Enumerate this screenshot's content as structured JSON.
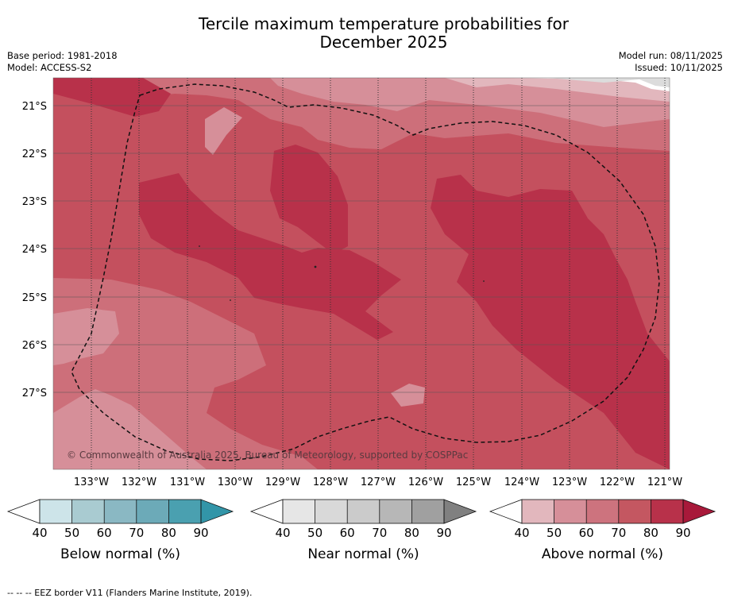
{
  "title_line1": "Tercile maximum temperature probabilities for",
  "title_line2": "December 2025",
  "base_period": "Base period: 1981-2018",
  "model": "Model: ACCESS-S2",
  "model_run": "Model run: 08/11/2025",
  "issued": "Issued: 10/11/2025",
  "copyright": "© Commonwealth of Australia 2025, Bureau of Meteorology, supported by COSPPac",
  "lat_labels": [
    "21°S",
    "22°S",
    "23°S",
    "24°S",
    "25°S",
    "26°S",
    "27°S"
  ],
  "lon_labels": [
    "133°W",
    "132°W",
    "131°W",
    "130°W",
    "129°W",
    "128°W",
    "127°W",
    "126°W",
    "125°W",
    "124°W",
    "123°W",
    "122°W",
    "121°W"
  ],
  "colorbars": [
    {
      "label": "Below normal (%)",
      "ticks": [
        "40",
        "50",
        "60",
        "70",
        "80",
        "90"
      ],
      "colors": [
        "#cde4e9",
        "#a9cbd1",
        "#8ab8c3",
        "#6caab8",
        "#4aa0b0",
        "#3295a8"
      ]
    },
    {
      "label": "Near normal (%)",
      "ticks": [
        "40",
        "50",
        "60",
        "70",
        "80",
        "90"
      ],
      "colors": [
        "#e6e6e6",
        "#d9d9d9",
        "#cbcbcb",
        "#b7b7b7",
        "#a0a0a0",
        "#808080"
      ]
    },
    {
      "label": "Above normal (%)",
      "ticks": [
        "40",
        "50",
        "60",
        "70",
        "80",
        "90"
      ],
      "colors": [
        "#e2b7bd",
        "#d68f99",
        "#cd737e",
        "#c45761",
        "#b8314a",
        "#a8193a"
      ]
    }
  ],
  "footer": "--  --  -- EEZ border V11 (Flanders Marine Institute, 2019)."
}
